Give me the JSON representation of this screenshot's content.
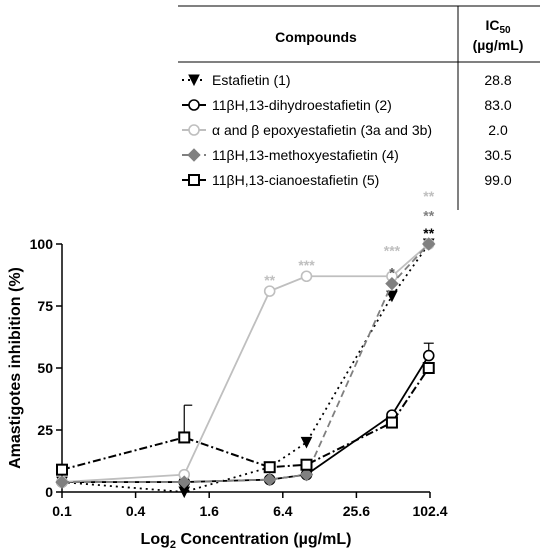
{
  "chart_data": {
    "type": "line",
    "xlabel_prefix": "Log",
    "xlabel_sub": "2",
    "xlabel_rest": " Concentration (µg/mL)",
    "ylabel": "Amastigotes inhibition (%)",
    "x_scale": "log2",
    "xlim": [
      0.1,
      102.4
    ],
    "ylim": [
      0,
      100
    ],
    "x_ticks": [
      0.1,
      0.4,
      1.6,
      6.4,
      25.6,
      102.4
    ],
    "x_tick_labels": [
      "0.1",
      "0.4",
      "1.6",
      "6.4",
      "25.6",
      "102.4"
    ],
    "y_ticks": [
      0,
      25,
      50,
      75,
      100
    ],
    "y_tick_labels": [
      "0",
      "25",
      "50",
      "75",
      "100"
    ],
    "table": {
      "header_compounds": "Compounds",
      "header_ic_main": "IC",
      "header_ic_sub": "50",
      "header_ic_units": "(µg/mL)"
    },
    "series": [
      {
        "name": "Estafietin (1)",
        "ic50": "28.8",
        "color": "#000000",
        "dash": "2,4",
        "marker": "triangle-down",
        "x": [
          0.1,
          1.0,
          5.0,
          10.0,
          50.0,
          100.0
        ],
        "y": [
          4,
          0,
          10,
          20,
          79,
          100
        ]
      },
      {
        "name": "11βH,13-dihydroestafietin (2)",
        "ic50": "83.0",
        "color": "#000000",
        "dash": "",
        "marker": "circle-open",
        "x": [
          0.1,
          1.0,
          5.0,
          10.0,
          50.0,
          100.0
        ],
        "y": [
          4,
          4,
          5,
          7,
          31,
          55
        ],
        "err_last": 5
      },
      {
        "name": "α and β epoxyestafietin (3a and 3b)",
        "ic50": "2.0",
        "color": "#bfbfbf",
        "dash": "",
        "marker": "circle-open",
        "x": [
          0.1,
          1.0,
          5.0,
          10.0,
          50.0,
          100.0
        ],
        "y": [
          4,
          7,
          81,
          87,
          87,
          100
        ]
      },
      {
        "name": "11βH,13-methoxyestafietin (4)",
        "ic50": "30.5",
        "color": "#808080",
        "dash": "7,4",
        "marker": "diamond",
        "x": [
          0.1,
          1.0,
          5.0,
          10.0,
          50.0,
          100.0
        ],
        "y": [
          4,
          4,
          5,
          7,
          84,
          100
        ]
      },
      {
        "name": "11βH,13-cianoestafietin (5)",
        "ic50": "99.0",
        "color": "#000000",
        "dash": "8,3,2,3",
        "marker": "square-open",
        "x": [
          0.1,
          1.0,
          5.0,
          10.0,
          50.0,
          100.0
        ],
        "y": [
          9,
          22,
          10,
          11,
          28,
          50
        ],
        "err_index": 1,
        "err_value": 13
      }
    ],
    "annotations": [
      {
        "text": "**",
        "x": 5.0,
        "y": 81,
        "color": "#bfbfbf"
      },
      {
        "text": "***",
        "x": 10.0,
        "y": 87,
        "color": "#bfbfbf"
      },
      {
        "text": "***",
        "x": 50.0,
        "y": 93,
        "color": "#bfbfbf"
      },
      {
        "text": "*",
        "x": 50.0,
        "y": 84,
        "color": "#555555"
      },
      {
        "text": "**",
        "x": 100.0,
        "y": 115,
        "color": "#bfbfbf"
      },
      {
        "text": "**",
        "x": 100.0,
        "y": 107,
        "color": "#808080"
      },
      {
        "text": "**",
        "x": 100.0,
        "y": 100,
        "color": "#000000"
      }
    ]
  }
}
